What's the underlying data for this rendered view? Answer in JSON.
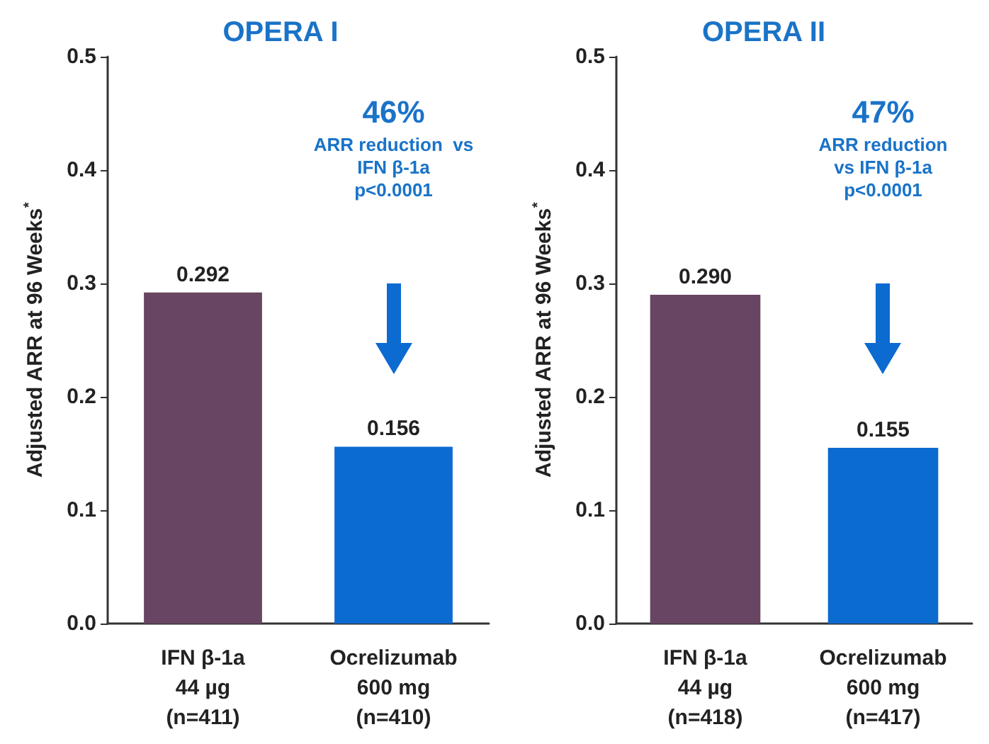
{
  "chart_data": [
    {
      "type": "bar",
      "title": "OPERA I",
      "ylabel": "Adjusted ARR at 96 Weeks$^{*}$",
      "categories": [
        "IFN β-1a\n44 µg\n(n=411)",
        "Ocrelizumab\n600 mg\n(n=410)"
      ],
      "values": [
        0.292,
        0.156
      ],
      "colors": [
        "#684563",
        "#0b6bd0"
      ],
      "ylim": [
        0,
        0.5
      ],
      "yticks": [
        {
          "value": 0,
          "label": "0.0"
        },
        0.1,
        0.2,
        0.3,
        0.4,
        0.5
      ],
      "grid": false,
      "data_labels": true,
      "annotations": [
        "46%",
        "ARR reduction  vs\nIFN β-1a\np<0.0001"
      ]
    },
    {
      "type": "bar",
      "title": "OPERA II",
      "ylabel": "Adjusted ARR at 96 Weeks$^{*}$",
      "categories": [
        "IFN β-1a\n44 µg\n(n=418)",
        "Ocrelizumab\n600 mg\n(n=417)"
      ],
      "values": [
        0.29,
        0.155
      ],
      "value_labels": [
        "0.290",
        "0.155"
      ],
      "colors": [
        "#684563",
        "#0b6bd0"
      ],
      "ylim": [
        0,
        0.5
      ],
      "yticks": [
        {
          "value": 0,
          "label": "0.0"
        },
        0.1,
        0.2,
        0.3,
        0.4,
        0.5
      ],
      "grid": false,
      "annotations": [
        "47%",
        "ARR reduction\nvs IFN β-1a\np<0.0001"
      ]
    }
  ]
}
